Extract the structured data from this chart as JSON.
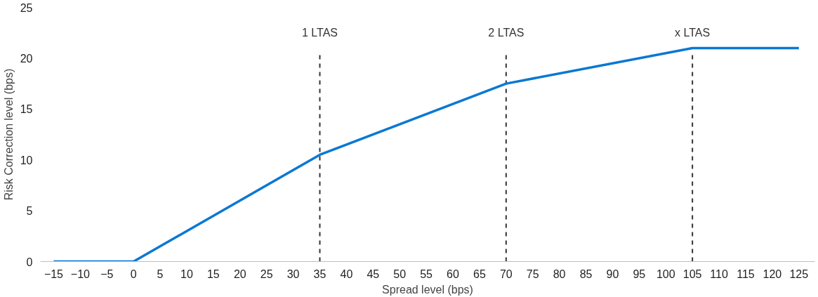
{
  "chart_data": {
    "type": "line",
    "xlabel": "Spread level (bps)",
    "ylabel": "Risk Correction level (bps)",
    "x": [
      -15,
      0,
      35,
      70,
      105,
      125
    ],
    "series": [
      {
        "color": "#0a78d2",
        "values": [
          0,
          0,
          10.5,
          17.5,
          21,
          21
        ]
      }
    ],
    "xlim": [
      -17.5,
      128
    ],
    "xticks": [
      -15,
      -10,
      -5,
      0,
      5,
      10,
      15,
      20,
      25,
      30,
      35,
      40,
      45,
      50,
      55,
      60,
      65,
      70,
      75,
      80,
      85,
      90,
      95,
      100,
      105,
      110,
      115,
      120,
      125
    ],
    "ylim": [
      0,
      25
    ],
    "yticks": [
      0,
      5,
      10,
      15,
      20,
      25
    ],
    "grid": false,
    "marker": "none",
    "line_style": "solid",
    "ref_lines": [
      {
        "axis": "x",
        "value": 35,
        "label": "1 LTAS",
        "color": "#333333",
        "line_style": "dashed"
      },
      {
        "axis": "x",
        "value": 70,
        "label": "2 LTAS",
        "color": "#333333",
        "line_style": "dashed"
      },
      {
        "axis": "x",
        "value": 105,
        "label": "x LTAS",
        "color": "#333333",
        "line_style": "dashed"
      }
    ]
  }
}
